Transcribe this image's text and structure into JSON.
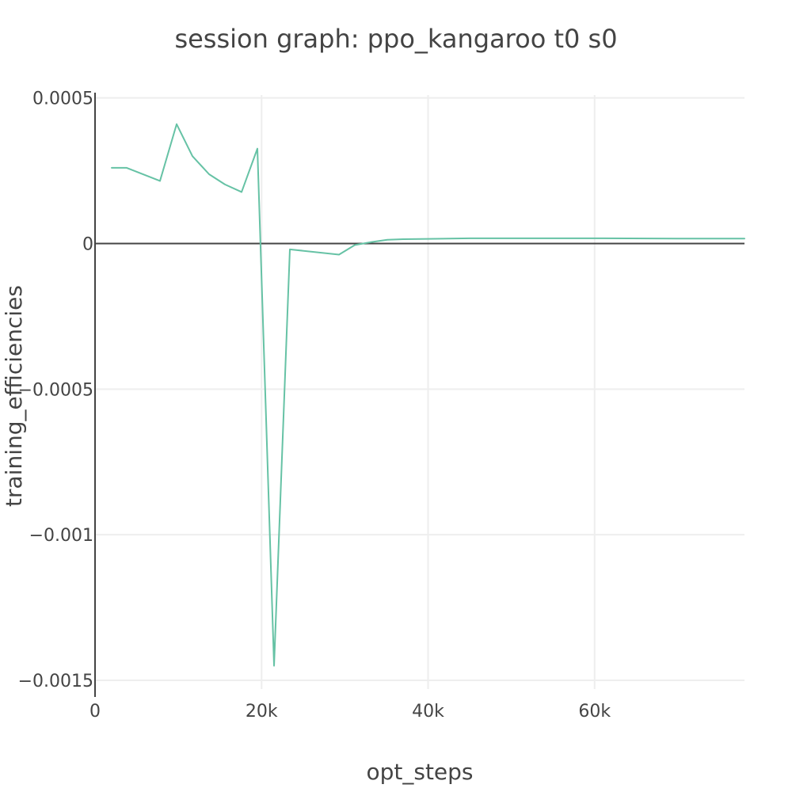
{
  "chart_data": {
    "type": "line",
    "title": "session graph: ppo_kangaroo t0 s0",
    "xlabel": "opt_steps",
    "ylabel": "training_efficiencies",
    "xlim": [
      0,
      78000
    ],
    "ylim": [
      -0.00153,
      0.00051
    ],
    "x_ticks": [
      {
        "value": 0,
        "label": "0"
      },
      {
        "value": 20000,
        "label": "20k"
      },
      {
        "value": 40000,
        "label": "40k"
      },
      {
        "value": 60000,
        "label": "60k"
      }
    ],
    "y_ticks": [
      {
        "value": 0.0005,
        "label": "0.0005"
      },
      {
        "value": 0,
        "label": "0"
      },
      {
        "value": -0.0005,
        "label": "−0.0005"
      },
      {
        "value": -0.001,
        "label": "−0.001"
      },
      {
        "value": -0.0015,
        "label": "−0.0015"
      }
    ],
    "grid": true,
    "legend": false,
    "series": [
      {
        "color": "#66c2a5",
        "x": [
          2000,
          3800,
          7800,
          9800,
          11700,
          13700,
          15600,
          17600,
          19500,
          21500,
          23400,
          29300,
          31200,
          33200,
          35100,
          37100,
          40000,
          45000,
          50000,
          60000,
          70000,
          78000
        ],
        "y": [
          0.00026,
          0.00026,
          0.000215,
          0.00041,
          0.0003,
          0.000238,
          0.000203,
          0.000177,
          0.000326,
          -0.00145,
          -2e-05,
          -3.8e-05,
          -5e-06,
          5e-06,
          1.3e-05,
          1.5e-05,
          1.6e-05,
          1.8e-05,
          1.8e-05,
          1.8e-05,
          1.7e-05,
          1.7e-05
        ]
      }
    ]
  }
}
